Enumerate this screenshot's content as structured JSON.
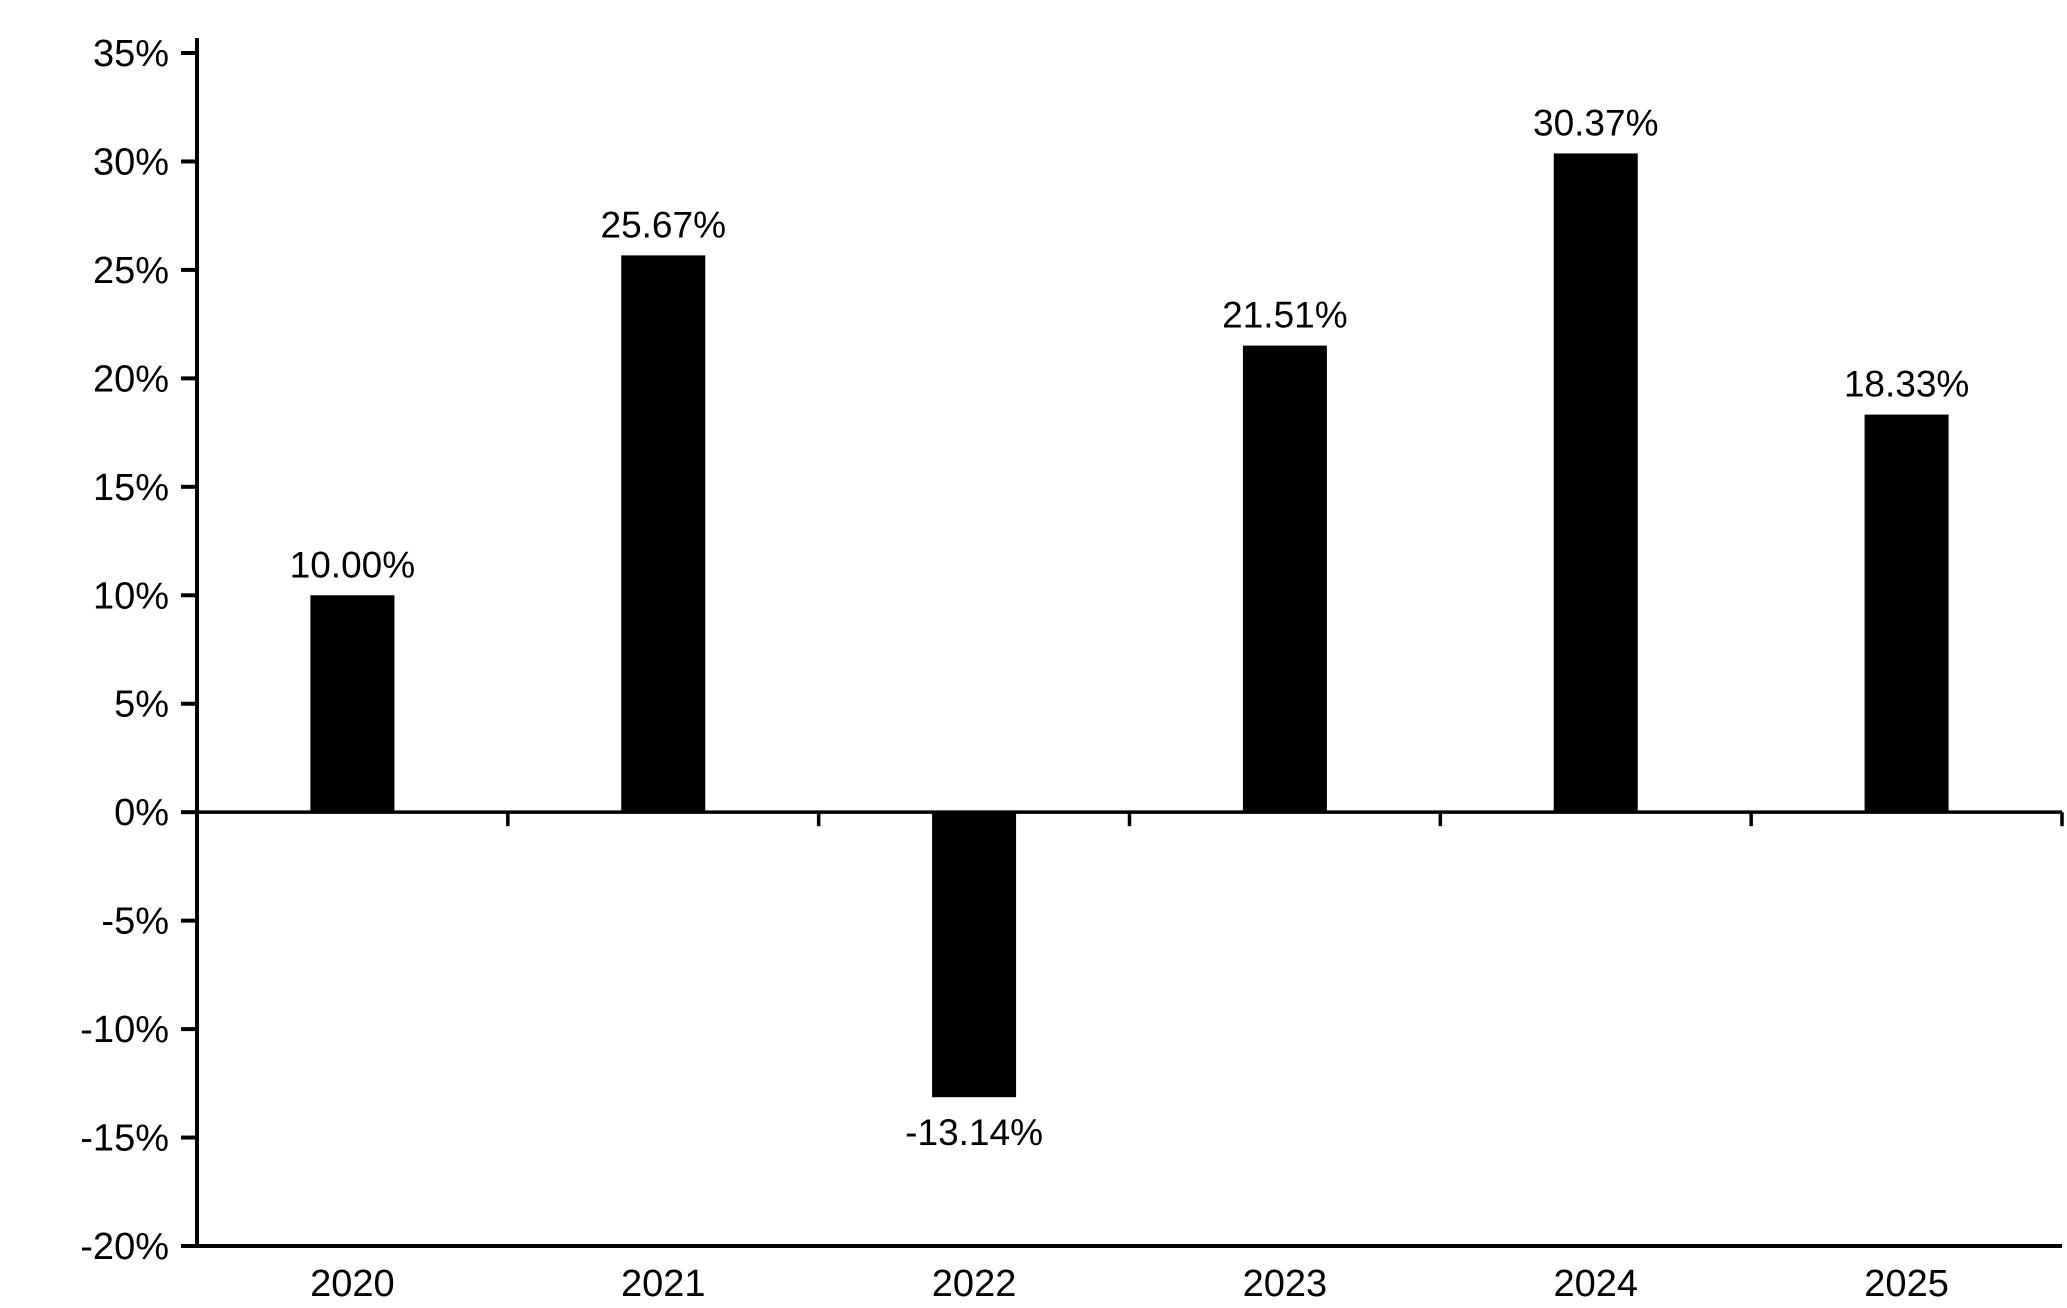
{
  "chart_data": {
    "type": "bar",
    "title": "",
    "xlabel": "",
    "ylabel": "",
    "categories": [
      "2020",
      "2021",
      "2022",
      "2023",
      "2024",
      "2025"
    ],
    "values": [
      10.0,
      25.67,
      -13.14,
      21.51,
      30.37,
      18.33
    ],
    "value_labels": [
      "10.00%",
      "25.67%",
      "-13.14%",
      "21.51%",
      "30.37%",
      "18.33%"
    ],
    "ylim": [
      -20,
      35
    ],
    "y_tick_step": 5,
    "y_tick_labels": [
      "-20%",
      "-15%",
      "-10%",
      "-5%",
      "0%",
      "5%",
      "10%",
      "15%",
      "20%",
      "25%",
      "30%",
      "35%"
    ],
    "grid": false,
    "legend": false,
    "baseline_at_zero": true,
    "bar_color": "#000000",
    "axis_color": "#000000",
    "text_color": "#000000",
    "background": "#ffffff"
  }
}
